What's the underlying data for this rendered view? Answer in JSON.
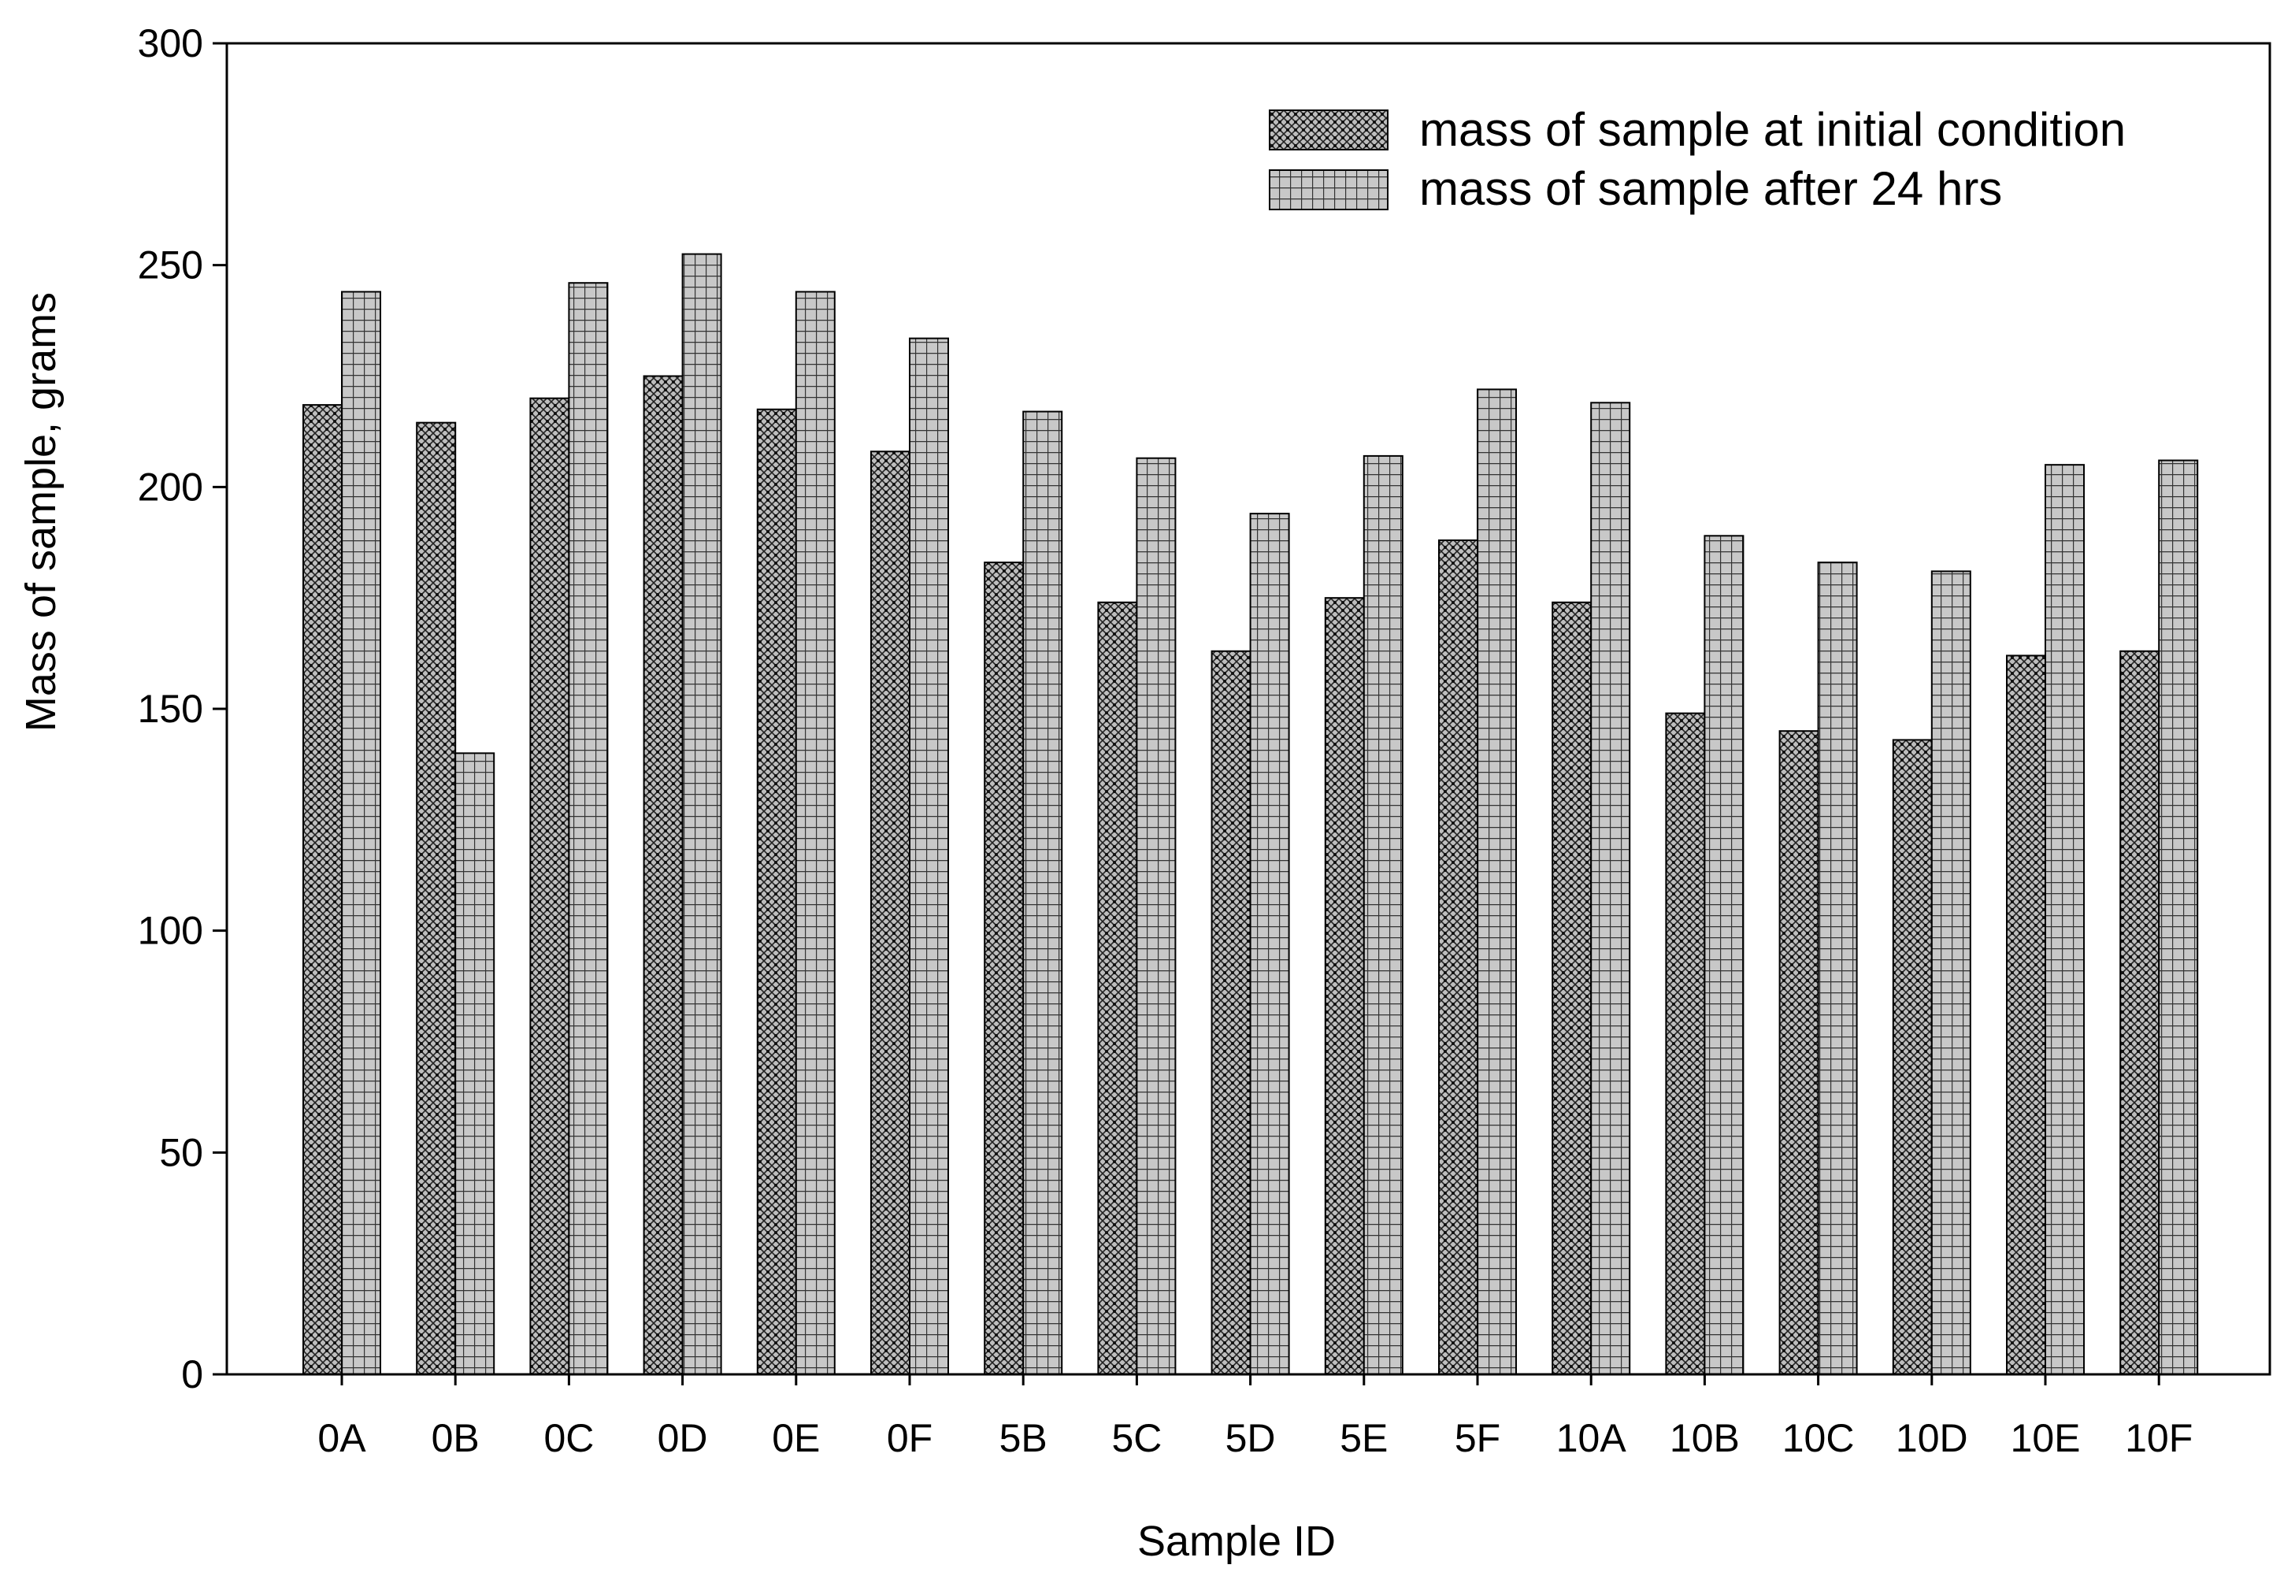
{
  "chart_data": {
    "type": "bar",
    "title": "",
    "xlabel": "Sample ID",
    "ylabel": "Mass of sample, grams",
    "ylim": [
      0,
      300
    ],
    "yticks": [
      0,
      50,
      100,
      150,
      200,
      250,
      300
    ],
    "grid": false,
    "legend_position": "top-right",
    "categories": [
      "0A",
      "0B",
      "0C",
      "0D",
      "0E",
      "0F",
      "5B",
      "5C",
      "5D",
      "5E",
      "5F",
      "10A",
      "10B",
      "10C",
      "10D",
      "10E",
      "10F"
    ],
    "series": [
      {
        "name": "mass of sample at initial condition",
        "pattern": "crosshatch-dots",
        "color": "#b8b8b8",
        "values": [
          218.5,
          214.5,
          220,
          225,
          217.5,
          208,
          183,
          174,
          163,
          175,
          188,
          174,
          149,
          145,
          143,
          162,
          163
        ]
      },
      {
        "name": "mass of sample after 24 hrs",
        "pattern": "grid",
        "color": "#c6c6c6",
        "values": [
          244,
          140,
          246,
          252.5,
          244,
          233.5,
          217,
          206.5,
          194,
          207,
          222,
          219,
          189,
          183,
          181,
          205,
          206
        ]
      }
    ]
  }
}
